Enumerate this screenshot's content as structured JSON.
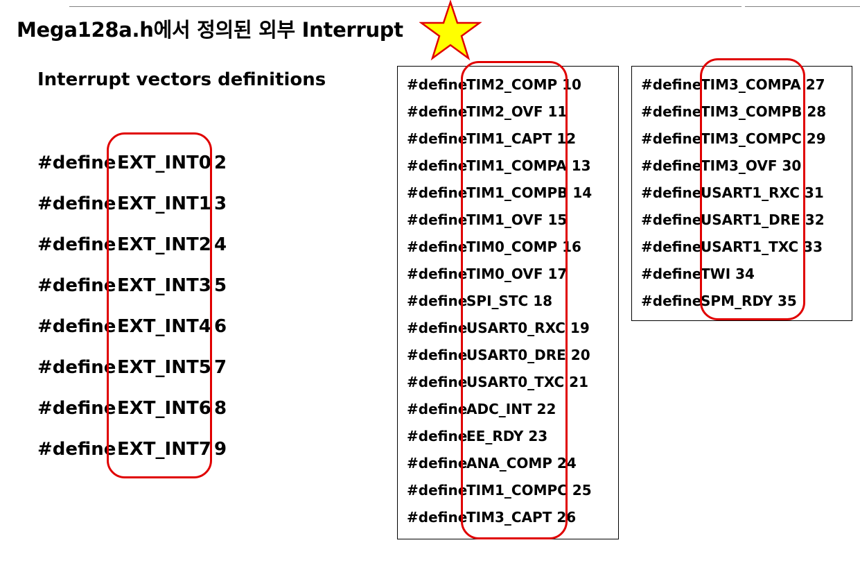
{
  "title": "Mega128a.h에서 정의된 외부 Interrupt",
  "subtitle": "Interrupt vectors definitions",
  "keyword": "#define",
  "colors": {
    "highlight": "#e00000",
    "star_fill": "#ffff00",
    "star_stroke": "#e00000"
  },
  "icons": {
    "title_star": "star-icon"
  },
  "external_interrupts": [
    {
      "name": "EXT_INT0",
      "value": "2"
    },
    {
      "name": "EXT_INT1",
      "value": "3"
    },
    {
      "name": "EXT_INT2",
      "value": "4"
    },
    {
      "name": "EXT_INT3",
      "value": "5"
    },
    {
      "name": "EXT_INT4",
      "value": "6"
    },
    {
      "name": "EXT_INT5",
      "value": "7"
    },
    {
      "name": "EXT_INT6",
      "value": "8"
    },
    {
      "name": "EXT_INT7",
      "value": "9"
    }
  ],
  "vectors_middle": [
    "TIM2_COMP 10",
    "TIM2_OVF 11",
    "TIM1_CAPT 12",
    "TIM1_COMPA 13",
    "TIM1_COMPB 14",
    "TIM1_OVF 15",
    "TIM0_COMP 16",
    "TIM0_OVF 17",
    "SPI_STC 18",
    "USART0_RXC 19",
    "USART0_DRE 20",
    "USART0_TXC 21",
    "ADC_INT 22",
    "EE_RDY 23",
    "ANA_COMP 24",
    "TIM1_COMPC 25",
    "TIM3_CAPT 26"
  ],
  "vectors_right": [
    "TIM3_COMPA 27",
    "TIM3_COMPB 28",
    "TIM3_COMPC 29",
    "TIM3_OVF 30",
    "USART1_RXC 31",
    "USART1_DRE 32",
    "USART1_TXC 33",
    "TWI 34",
    "SPM_RDY 35"
  ]
}
